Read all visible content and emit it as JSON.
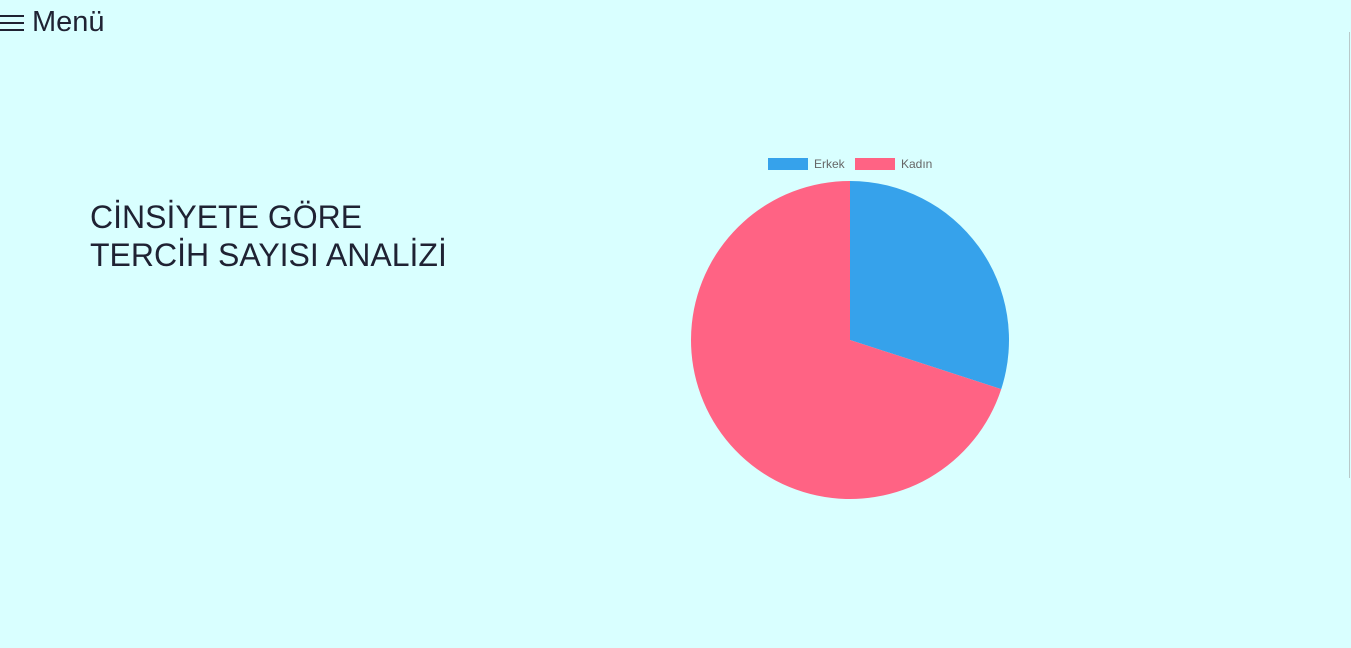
{
  "menu": {
    "label": "Menü",
    "icon": "hamburger-menu-icon"
  },
  "heading": {
    "line1": "CİNSİYETE GÖRE",
    "line2": "TERCİH SAYISI ANALİZİ"
  },
  "chart_data": {
    "type": "pie",
    "title": "",
    "categories": [
      "Erkek",
      "Kadın"
    ],
    "values": [
      30,
      70
    ],
    "colors": [
      "#36a2eb",
      "#ff6384"
    ],
    "legend": "top"
  }
}
